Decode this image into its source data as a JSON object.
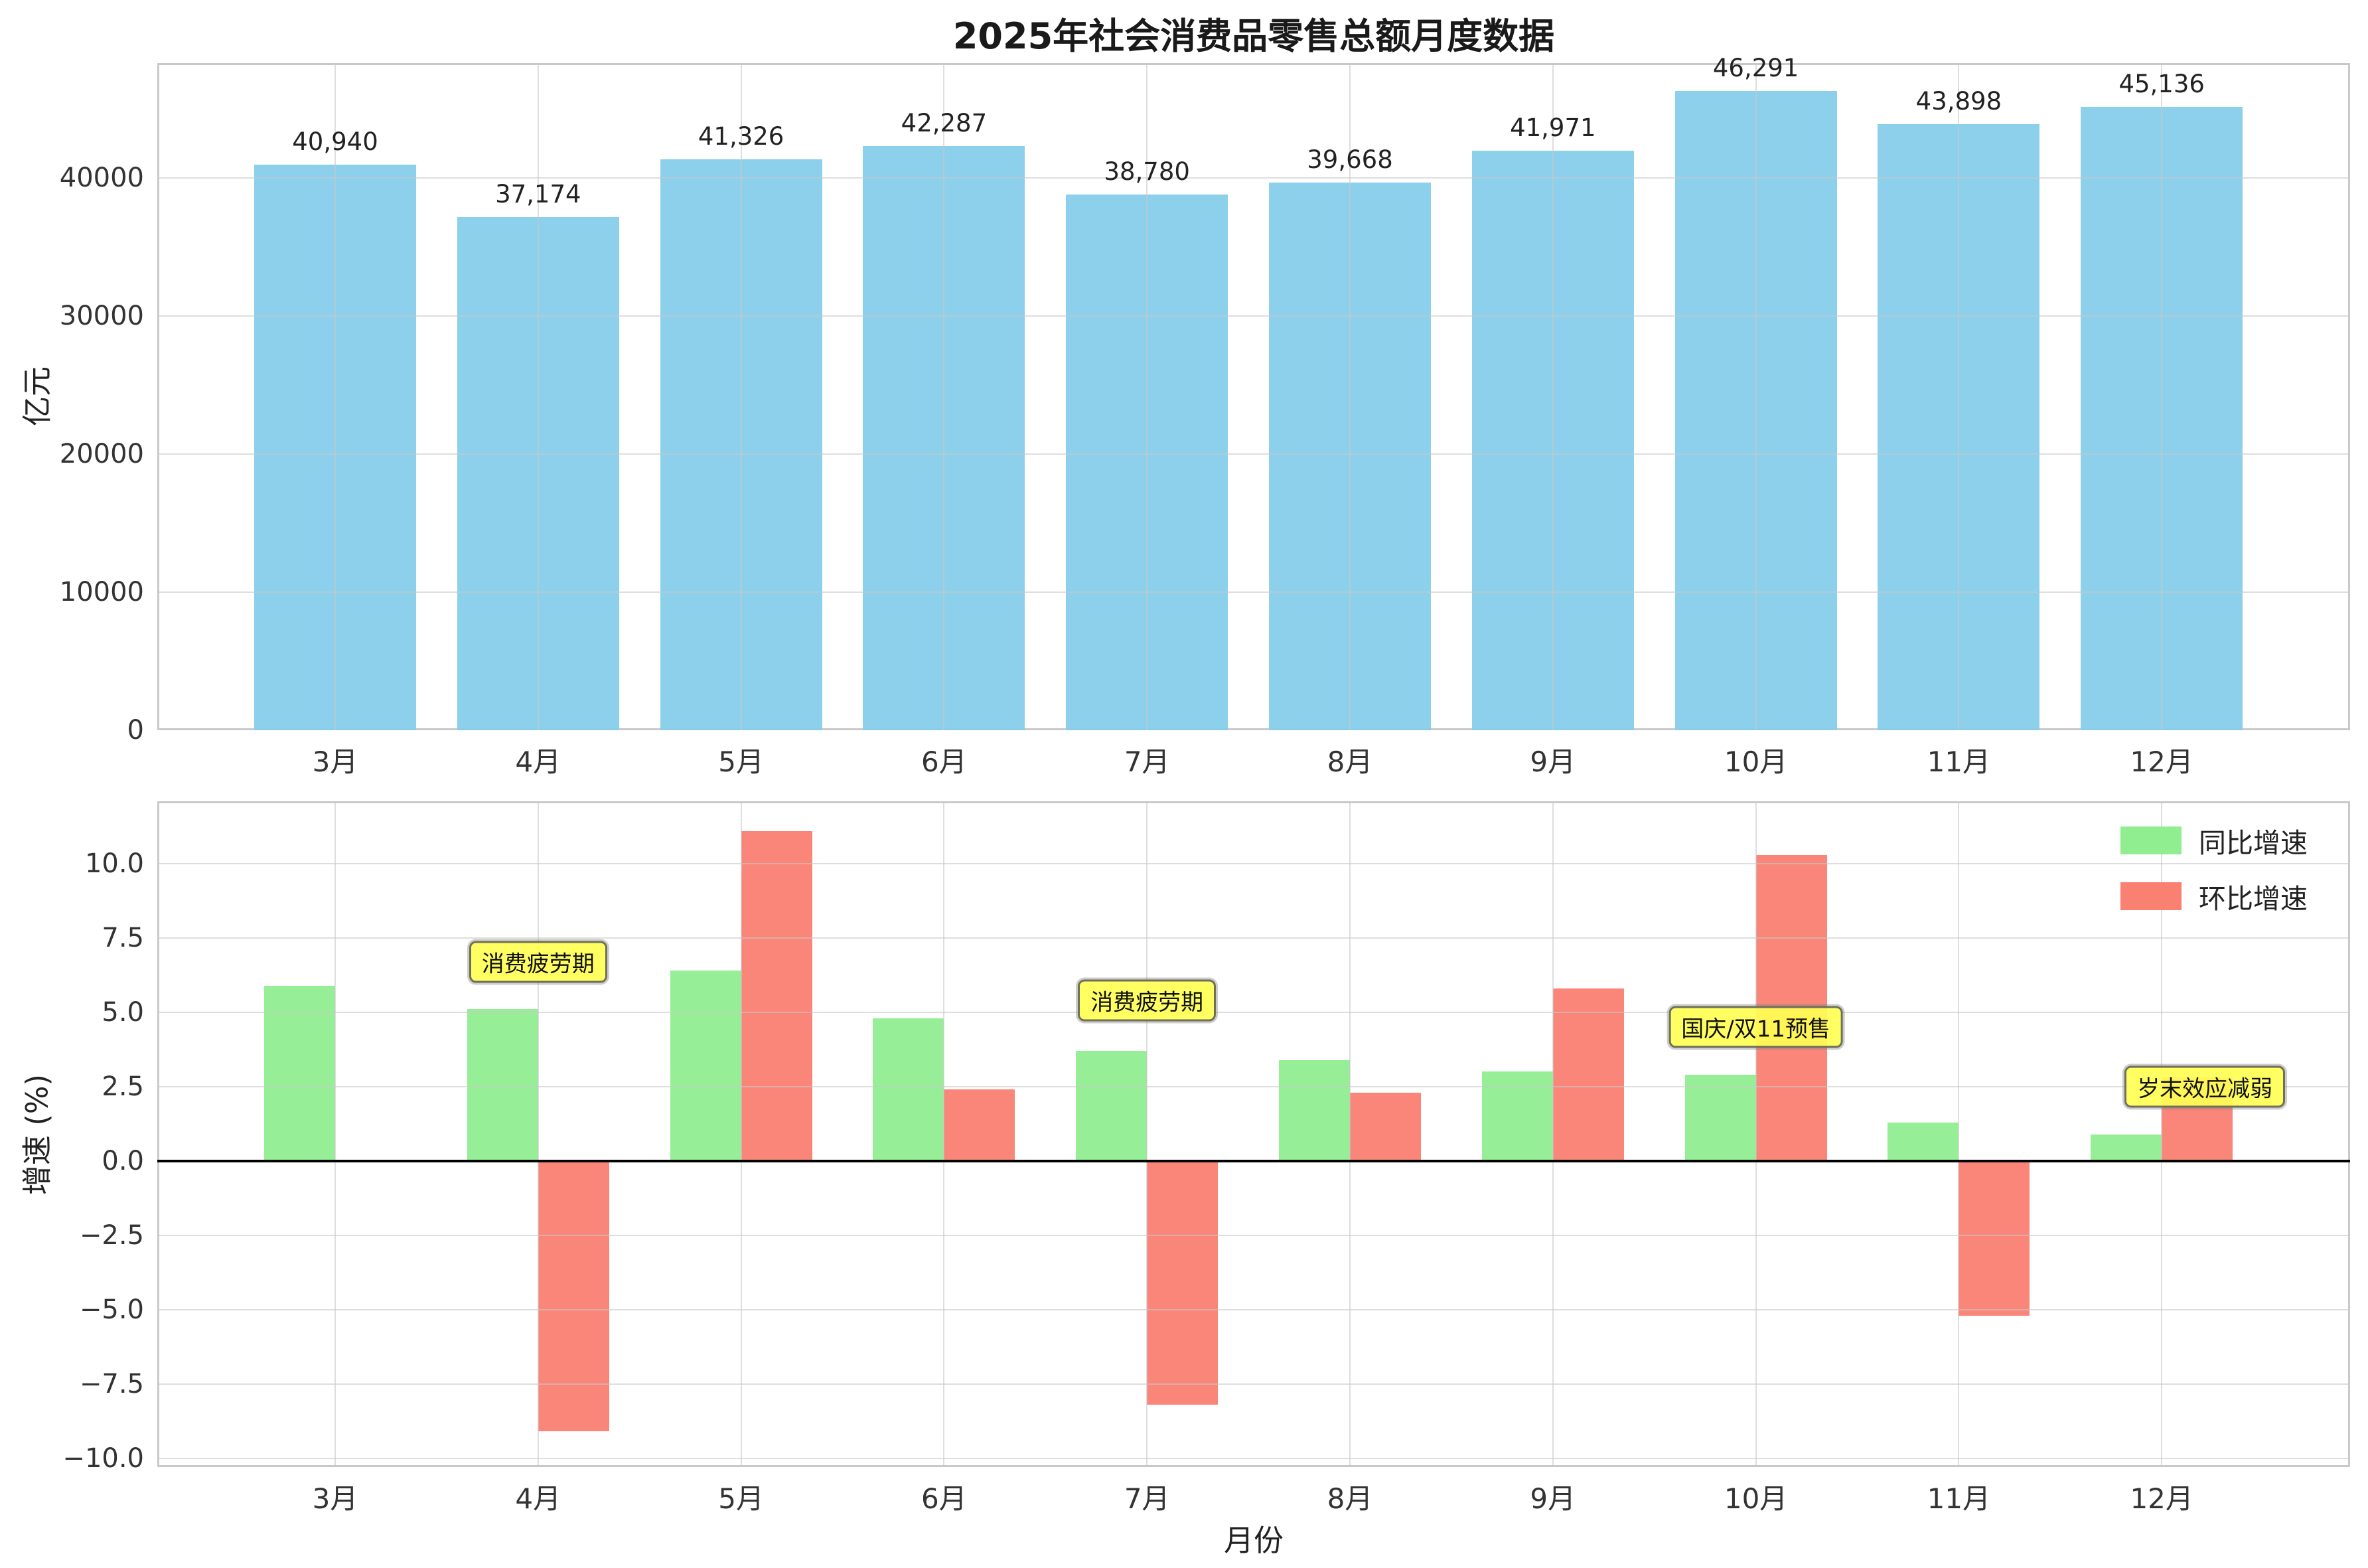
{
  "chart_data": [
    {
      "type": "bar",
      "title": "2025年社会消费品零售总额月度数据",
      "categories": [
        "3月",
        "4月",
        "5月",
        "6月",
        "7月",
        "8月",
        "9月",
        "10月",
        "11月",
        "12月"
      ],
      "values": [
        40940,
        37174,
        41326,
        42287,
        38780,
        39668,
        41971,
        46291,
        43898,
        45136
      ],
      "value_labels": [
        "40,940",
        "37,174",
        "41,326",
        "42,287",
        "38,780",
        "39,668",
        "41,971",
        "46,291",
        "43,898",
        "45,136"
      ],
      "ylabel": "亿元",
      "yticks": [
        {
          "v": 0,
          "label": "0"
        },
        {
          "v": 10000,
          "label": "10000"
        },
        {
          "v": 20000,
          "label": "20000"
        },
        {
          "v": 30000,
          "label": "30000"
        },
        {
          "v": 40000,
          "label": "40000"
        }
      ],
      "ylim": [
        0,
        48320
      ],
      "bar_color": "#87CEEB",
      "grid": true,
      "legend_position": "none"
    },
    {
      "type": "bar",
      "categories": [
        "3月",
        "4月",
        "5月",
        "6月",
        "7月",
        "8月",
        "9月",
        "10月",
        "11月",
        "12月"
      ],
      "series": [
        {
          "name": "同比增速",
          "color": "#90EE90",
          "values": [
            5.9,
            5.1,
            6.4,
            4.8,
            3.7,
            3.4,
            3.0,
            2.9,
            1.3,
            0.9
          ]
        },
        {
          "name": "环比增速",
          "color": "#FA8072",
          "values": [
            null,
            -9.1,
            11.1,
            2.4,
            -8.2,
            2.3,
            5.8,
            10.3,
            -5.2,
            2.8
          ]
        }
      ],
      "ylabel": "增速 (%)",
      "xlabel": "月份",
      "yticks": [
        {
          "v": -10,
          "label": "−10.0"
        },
        {
          "v": -7.5,
          "label": "−7.5"
        },
        {
          "v": -5,
          "label": "−5.0"
        },
        {
          "v": -2.5,
          "label": "−2.5"
        },
        {
          "v": 0,
          "label": "0.0"
        },
        {
          "v": 2.5,
          "label": "2.5"
        },
        {
          "v": 5,
          "label": "5.0"
        },
        {
          "v": 7.5,
          "label": "7.5"
        },
        {
          "v": 10,
          "label": "10.0"
        }
      ],
      "ylim": [
        -10.3,
        12.1
      ],
      "zero_line": true,
      "grid": true,
      "legend_position": "upper right",
      "annotations": [
        {
          "text": "消费疲劳期",
          "month": "4月",
          "month_index": 1,
          "y": 6.7,
          "dx": 0
        },
        {
          "text": "消费疲劳期",
          "month": "7月",
          "month_index": 4,
          "y": 5.4,
          "dx": 0
        },
        {
          "text": "国庆/双11预售",
          "month": "10月",
          "month_index": 7,
          "y": 4.5,
          "dx": 0
        },
        {
          "text": "岁末效应减弱",
          "month": "12月",
          "month_index": 9,
          "y": 2.5,
          "dx": 65
        }
      ],
      "annotation_style": {
        "bg": "#FFFF55",
        "border": "#6F6F5A",
        "text_color": "#111111"
      }
    }
  ]
}
